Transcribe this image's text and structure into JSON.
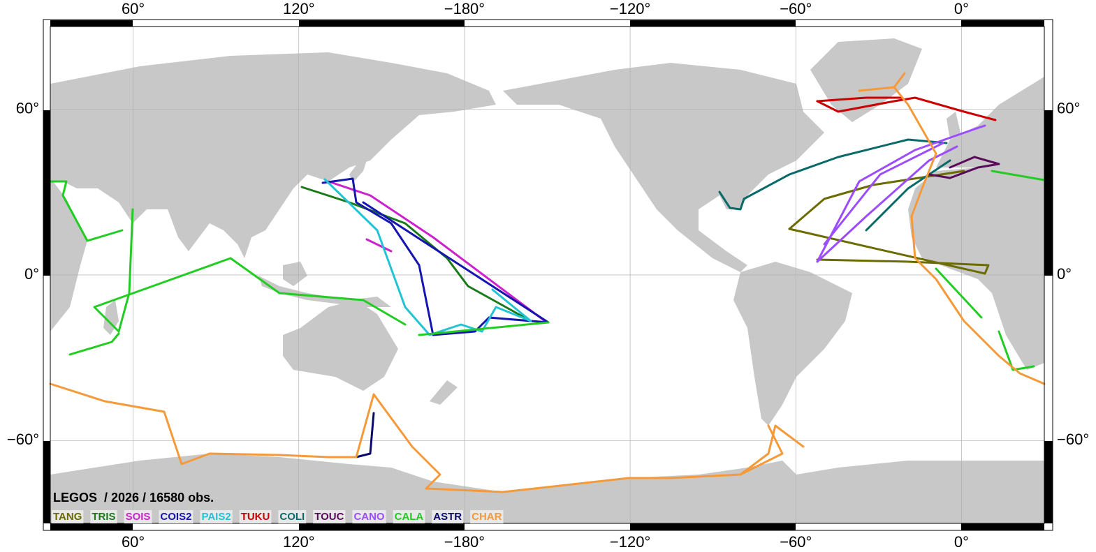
{
  "chart_data": {
    "type": "map",
    "title": "LEGOS  / 2026 / 16580 obs.",
    "xlim": [
      30,
      390
    ],
    "ylim": [
      -90,
      90
    ],
    "xticks": [
      {
        "value": 60,
        "label": "60°"
      },
      {
        "value": 120,
        "label": "120°"
      },
      {
        "value": -180,
        "label": "−180°"
      },
      {
        "value": -120,
        "label": "−120°"
      },
      {
        "value": -60,
        "label": "−60°"
      },
      {
        "value": 0,
        "label": "0°"
      }
    ],
    "yticks": [
      {
        "value": 60,
        "label": "60°"
      },
      {
        "value": 0,
        "label": "0°"
      },
      {
        "value": -60,
        "label": "−60°"
      }
    ],
    "grid": true,
    "land_color": "#c8c8c8",
    "legend": [
      {
        "name": "TANG",
        "color": "#6b6b00"
      },
      {
        "name": "TRIS",
        "color": "#1a7a1a"
      },
      {
        "name": "SOIS",
        "color": "#cc22cc"
      },
      {
        "name": "COIS2",
        "color": "#1515b0"
      },
      {
        "name": "PAIS2",
        "color": "#22c4d4"
      },
      {
        "name": "TUKU",
        "color": "#cc0000"
      },
      {
        "name": "COLI",
        "color": "#0a6a6a"
      },
      {
        "name": "TOUC",
        "color": "#5a0a5a"
      },
      {
        "name": "CANO",
        "color": "#9b4dff"
      },
      {
        "name": "CALA",
        "color": "#22cc22"
      },
      {
        "name": "ASTR",
        "color": "#0a0a6a"
      },
      {
        "name": "CHAR",
        "color": "#f59a3a"
      }
    ]
  }
}
